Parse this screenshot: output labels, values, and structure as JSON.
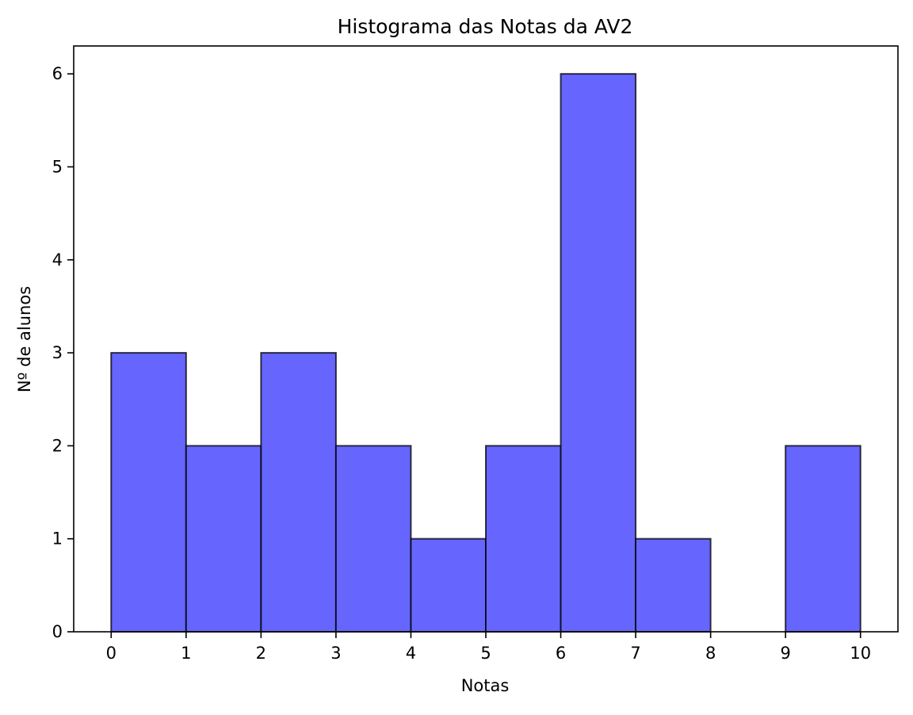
{
  "chart_data": {
    "type": "bar",
    "title": "Histograma das Notas da AV2",
    "xlabel": "Notas",
    "ylabel": "Nº de alunos",
    "bins": [
      {
        "start": 0,
        "end": 1,
        "count": 3
      },
      {
        "start": 1,
        "end": 2,
        "count": 2
      },
      {
        "start": 2,
        "end": 3,
        "count": 3
      },
      {
        "start": 3,
        "end": 4,
        "count": 2
      },
      {
        "start": 4,
        "end": 5,
        "count": 1
      },
      {
        "start": 5,
        "end": 6,
        "count": 2
      },
      {
        "start": 6,
        "end": 7,
        "count": 6
      },
      {
        "start": 7,
        "end": 8,
        "count": 1
      },
      {
        "start": 8,
        "end": 9,
        "count": 0
      },
      {
        "start": 9,
        "end": 10,
        "count": 2
      }
    ],
    "xticks": [
      "0",
      "1",
      "2",
      "3",
      "4",
      "5",
      "6",
      "7",
      "8",
      "9",
      "10"
    ],
    "yticks": [
      "0",
      "1",
      "2",
      "3",
      "4",
      "5",
      "6"
    ],
    "xlim": [
      -0.5,
      10.5
    ],
    "ylim": [
      0,
      6.3
    ],
    "grid": false,
    "bar_color": "#6666ff",
    "edge_color": "#000000"
  }
}
